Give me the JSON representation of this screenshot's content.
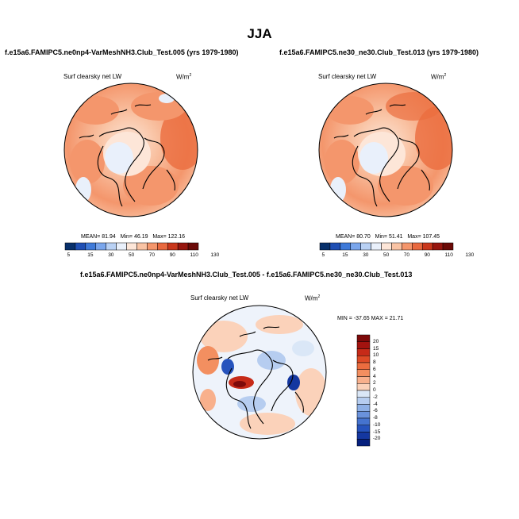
{
  "main_title": "JJA",
  "panels": [
    {
      "case": "f.e15a6.FAMIPC5.ne0np4-VarMeshNH3.Club_Test.005 (yrs 1979-1980)",
      "variable": "Surf clearsky net LW",
      "units": "W/m",
      "units_sup": "2",
      "stats": {
        "mean": "81.94",
        "min": "46.19",
        "max": "122.16"
      }
    },
    {
      "case": "f.e15a6.FAMIPC5.ne30_ne30.Club_Test.013 (yrs 1979-1980)",
      "variable": "Surf clearsky net LW",
      "units": "W/m",
      "units_sup": "2",
      "stats": {
        "mean": "80.70",
        "min": "51.41",
        "max": "107.45"
      }
    }
  ],
  "stat_labels": {
    "mean": "MEAN=",
    "min": "Min=",
    "max": "Max="
  },
  "diff": {
    "title": "f.e15a6.FAMIPC5.ne0np4-VarMeshNH3.Club_Test.005 - f.e15a6.FAMIPC5.ne30_ne30.Club_Test.013",
    "variable": "Surf clearsky net LW",
    "units": "W/m",
    "units_sup": "2",
    "minmax": "MIN = -37.65 MAX =  21.71"
  },
  "colorbar_abs": {
    "levels": [
      "5",
      "15",
      "30",
      "50",
      "70",
      "90",
      "110",
      "130"
    ],
    "colors": [
      "#08306b",
      "#1f4fb4",
      "#3f7ad9",
      "#7aa6ec",
      "#b9d1f4",
      "#e9f0fb",
      "#fde6d8",
      "#f9c3a4",
      "#f4966c",
      "#e8693f",
      "#c9371c",
      "#97160f",
      "#6b0a07"
    ]
  },
  "colorbar_diff": {
    "levels": [
      "20",
      "15",
      "10",
      "8",
      "6",
      "4",
      "2",
      "0",
      "-2",
      "-4",
      "-6",
      "-8",
      "-10",
      "-15",
      "-20"
    ],
    "colors": [
      "#7d0a0a",
      "#a3130f",
      "#c62a18",
      "#dd4a26",
      "#eb6d3f",
      "#f38f60",
      "#f8b08c",
      "#fbd2ba",
      "#dae7f7",
      "#b6cdf0",
      "#8eb0e6",
      "#6a92dc",
      "#4573cf",
      "#2653bd",
      "#1437a0",
      "#06207e"
    ]
  }
}
